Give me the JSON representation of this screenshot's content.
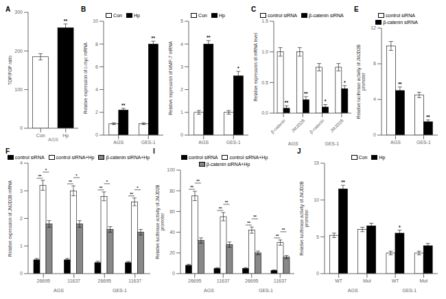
{
  "chart_data": [
    {
      "type": "bar",
      "title": "A",
      "categories": [
        "Con",
        "Hp"
      ],
      "values": [
        185,
        260
      ],
      "errors": [
        8,
        10
      ],
      "colors": [
        "#ffffff",
        "#000000"
      ],
      "annotations": [
        null,
        "**"
      ],
      "xlabel": "AGS",
      "ylabel": "TOP/FOP ratio",
      "ylim": [
        0,
        300
      ],
      "yticks": [
        0,
        100,
        200,
        300
      ]
    },
    {
      "type": "bar",
      "title": "B",
      "categories": [
        "AGS",
        "GES-1"
      ],
      "series": [
        {
          "name": "Con",
          "color": "#ffffff",
          "values": [
            1.0,
            1.0
          ],
          "errors": [
            0.08,
            0.08
          ]
        },
        {
          "name": "Hp",
          "color": "#000000",
          "values": [
            2.2,
            8.0
          ],
          "errors": [
            0.15,
            0.25
          ],
          "annotations": [
            "**",
            "**"
          ]
        }
      ],
      "ylabel": "Relative expression of c-myc mRNA",
      "ylim": [
        0,
        10
      ],
      "yticks": [
        0,
        2,
        4,
        6,
        8,
        10
      ]
    },
    {
      "type": "bar",
      "categories": [
        "AGS",
        "GES-1"
      ],
      "series": [
        {
          "name": "Con",
          "color": "#ffffff",
          "values": [
            1.0,
            1.0
          ],
          "errors": [
            0.08,
            0.08
          ]
        },
        {
          "name": "Hp",
          "color": "#000000",
          "values": [
            4.0,
            2.6
          ],
          "errors": [
            0.15,
            0.2
          ],
          "annotations": [
            "**",
            "*"
          ]
        }
      ],
      "ylabel": "Relative expression of MMP-7 mRNA",
      "ylim": [
        0,
        5
      ],
      "yticks": [
        0,
        1,
        2,
        3,
        4,
        5
      ]
    },
    {
      "type": "bar",
      "title": "C",
      "categories": [
        "β-catenin",
        "JMJD2B",
        "β-catenin",
        "JMJD2B"
      ],
      "category_groups": [
        "AGS",
        "AGS",
        "GES-1",
        "GES-1"
      ],
      "series": [
        {
          "name": "control siRNA",
          "color": "#ffffff",
          "values": [
            1.0,
            1.0,
            0.75,
            0.75
          ],
          "errors": [
            0.07,
            0.07,
            0.06,
            0.06
          ]
        },
        {
          "name": "β-catenin siRNA",
          "color": "#000000",
          "values": [
            0.08,
            0.22,
            0.1,
            0.4
          ],
          "errors": [
            0.04,
            0.05,
            0.04,
            0.05
          ],
          "annotations": [
            "**",
            "**",
            "*",
            "*"
          ]
        }
      ],
      "ylabel": "Relative expression of mRNA level",
      "ylim": [
        0,
        1.5
      ],
      "yticks": [
        {
          "value": 0,
          "label": "0.0"
        },
        0.5,
        {
          "value": 1,
          "label": "1.0"
        },
        1.5
      ]
    },
    {
      "type": "bar",
      "title": "E",
      "categories": [
        "AGS",
        "GES-1"
      ],
      "series": [
        {
          "name": "control siRNA",
          "color": "#ffffff",
          "values": [
            10.0,
            4.5
          ],
          "errors": [
            0.5,
            0.3
          ]
        },
        {
          "name": "β-catenin siRNA",
          "color": "#000000",
          "values": [
            5.0,
            1.5
          ],
          "errors": [
            0.4,
            0.2
          ],
          "annotations": [
            "**",
            "**"
          ]
        }
      ],
      "ylabel": "Relative luciferase activity of JMJD2B promoter",
      "ylim": [
        0,
        12
      ],
      "yticks": [
        0,
        4,
        8,
        12
      ]
    },
    {
      "type": "bar",
      "title": "F",
      "categories": [
        "26695",
        "11637",
        "26695",
        "11637"
      ],
      "category_groups": [
        "AGS",
        "AGS",
        "GES-1",
        "GES-1"
      ],
      "series": [
        {
          "name": "control siRNA",
          "color": "#000000",
          "values": [
            0.5,
            0.5,
            0.4,
            0.4
          ],
          "errors": [
            0.05,
            0.05,
            0.05,
            0.04
          ]
        },
        {
          "name": "control siRNA+Hp",
          "color": "#ffffff",
          "values": [
            3.2,
            3.0,
            2.8,
            2.6
          ],
          "errors": [
            0.18,
            0.18,
            0.16,
            0.14
          ]
        },
        {
          "name": "β-catenin siRNA+Hp",
          "color": "#888888",
          "values": [
            1.8,
            1.8,
            1.6,
            1.5
          ],
          "errors": [
            0.12,
            0.12,
            0.1,
            0.1
          ]
        }
      ],
      "brackets": [
        {
          "between": [
            "control siRNA",
            "control siRNA+Hp"
          ],
          "label": "**"
        },
        {
          "between": [
            "control siRNA+Hp",
            "β-catenin siRNA+Hp"
          ],
          "label": "*"
        }
      ],
      "ylabel": "Relative expression of JMJD2B mRNA",
      "ylim": [
        0,
        4
      ],
      "yticks": [
        0,
        1,
        2,
        3,
        4
      ]
    },
    {
      "type": "bar",
      "title": "I",
      "categories": [
        "26695",
        "11637",
        "26695",
        "11637"
      ],
      "category_groups": [
        "AGS",
        "AGS",
        "GES-1",
        "GES-1"
      ],
      "series": [
        {
          "name": "control siRNA",
          "color": "#000000",
          "values": [
            8,
            5,
            5,
            3
          ],
          "errors": [
            1.0,
            0.8,
            0.8,
            0.6
          ]
        },
        {
          "name": "control siRNA+Hp",
          "color": "#ffffff",
          "values": [
            75,
            55,
            42,
            30
          ],
          "errors": [
            4.5,
            4.0,
            3.0,
            2.5
          ]
        },
        {
          "name": "β-catenin siRNA+Hp",
          "color": "#888888",
          "values": [
            32,
            28,
            20,
            16
          ],
          "errors": [
            2.5,
            2.5,
            1.8,
            1.5
          ]
        }
      ],
      "brackets": [
        {
          "between": [
            "control siRNA",
            "control siRNA+Hp"
          ],
          "label": "**"
        },
        {
          "between": [
            "control siRNA+Hp",
            "β-catenin siRNA+Hp"
          ],
          "label": "**"
        }
      ],
      "ylabel": "Relative luciferase activity of JMJD2B promoter",
      "ylim": [
        0,
        100
      ],
      "yticks": [
        0,
        20,
        40,
        60,
        80,
        100
      ]
    },
    {
      "type": "bar",
      "title": "J",
      "categories": [
        "WT",
        "Mut",
        "WT",
        "Mut"
      ],
      "category_groups": [
        "AGS",
        "AGS",
        "GES-1",
        "GES-1"
      ],
      "series": [
        {
          "name": "Con",
          "color": "#ffffff",
          "values": [
            5.2,
            6.0,
            2.8,
            2.8
          ],
          "errors": [
            0.3,
            0.3,
            0.25,
            0.25
          ]
        },
        {
          "name": "Hp",
          "color": "#000000",
          "values": [
            11.5,
            6.5,
            5.5,
            3.8
          ],
          "errors": [
            0.5,
            0.35,
            0.4,
            0.3
          ],
          "annotations": [
            "**",
            null,
            "*",
            null
          ]
        }
      ],
      "ylabel": "Relative luciferase activity of JMJD2B promoter",
      "ylim": [
        0,
        15
      ],
      "yticks": [
        0,
        5,
        10,
        15
      ]
    }
  ]
}
